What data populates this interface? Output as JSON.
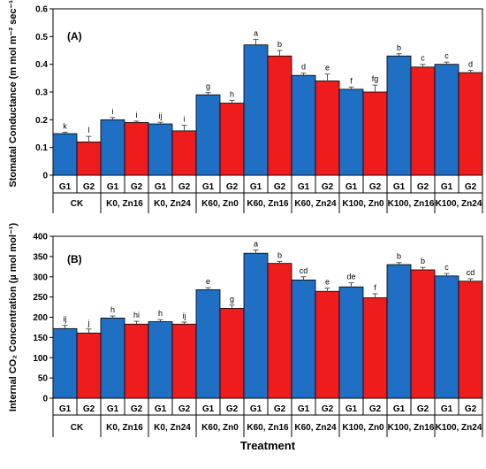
{
  "chart_data": [
    {
      "type": "bar",
      "panel_label": "(A)",
      "ylabel": "Stomatal Conductance (m mol m⁻² sec⁻¹)",
      "xlabel": "",
      "ylim": [
        0,
        0.6
      ],
      "yticks": [
        "0",
        "0.1",
        "0.2",
        "0.3",
        "0.4",
        "0.5",
        "0.6"
      ],
      "ytick_values": [
        0,
        0.1,
        0.2,
        0.3,
        0.4,
        0.5,
        0.6
      ],
      "groups": [
        "CK",
        "K0, Zn16",
        "K0, Zn24",
        "K60, Zn0",
        "K60, Zn16",
        "K60, Zn24",
        "K100, Zn0",
        "K100, Zn16",
        "K100, Zn24"
      ],
      "group_series_labels": [
        "G1",
        "G2"
      ],
      "series": [
        {
          "values": [
            0.15,
            0.2,
            0.185,
            0.29,
            0.47,
            0.36,
            0.31,
            0.43,
            0.4
          ],
          "errors": [
            0.005,
            0.008,
            0.006,
            0.008,
            0.02,
            0.008,
            0.008,
            0.008,
            0.008
          ],
          "letters": [
            "k",
            "i",
            "ij",
            "g",
            "a",
            "d",
            "f",
            "b",
            "c"
          ]
        },
        {
          "values": [
            0.12,
            0.19,
            0.16,
            0.26,
            0.43,
            0.34,
            0.3,
            0.39,
            0.37
          ],
          "errors": [
            0.02,
            0.005,
            0.02,
            0.01,
            0.02,
            0.025,
            0.025,
            0.01,
            0.008
          ],
          "letters": [
            "l",
            "i",
            "i",
            "h",
            "b",
            "e",
            "fg",
            "c",
            "d"
          ]
        }
      ]
    },
    {
      "type": "bar",
      "panel_label": "(B)",
      "ylabel": "Internal CO₂ Concentration (µ mol mol⁻¹)",
      "xlabel": "Treatment",
      "ylim": [
        0,
        400
      ],
      "yticks": [
        "0",
        "50",
        "100",
        "150",
        "200",
        "250",
        "300",
        "350",
        "400"
      ],
      "ytick_values": [
        0,
        50,
        100,
        150,
        200,
        250,
        300,
        350,
        400
      ],
      "groups": [
        "CK",
        "K0, Zn16",
        "K0, Zn24",
        "K60, Zn0",
        "K60, Zn16",
        "K60, Zn24",
        "K100, Zn0",
        "K100, Zn16",
        "K100, Zn24"
      ],
      "group_series_labels": [
        "G1",
        "G2"
      ],
      "series": [
        {
          "values": [
            172,
            198,
            189,
            268,
            358,
            292,
            275,
            330,
            302
          ],
          "errors": [
            8,
            5,
            5,
            5,
            8,
            8,
            10,
            5,
            6
          ],
          "letters": [
            "ij",
            "h",
            "h",
            "e",
            "a",
            "cd",
            "de",
            "b",
            "c"
          ]
        },
        {
          "values": [
            161,
            183,
            183,
            222,
            333,
            264,
            248,
            317,
            289
          ],
          "errors": [
            10,
            7,
            5,
            8,
            5,
            8,
            10,
            6,
            6
          ],
          "letters": [
            "j",
            "hi",
            "ij",
            "g",
            "b",
            "e",
            "f",
            "b",
            "cd"
          ]
        }
      ]
    }
  ],
  "colors": {
    "g1": "#1f6fc4",
    "g2": "#ee1c1c",
    "axis": "#000000"
  }
}
